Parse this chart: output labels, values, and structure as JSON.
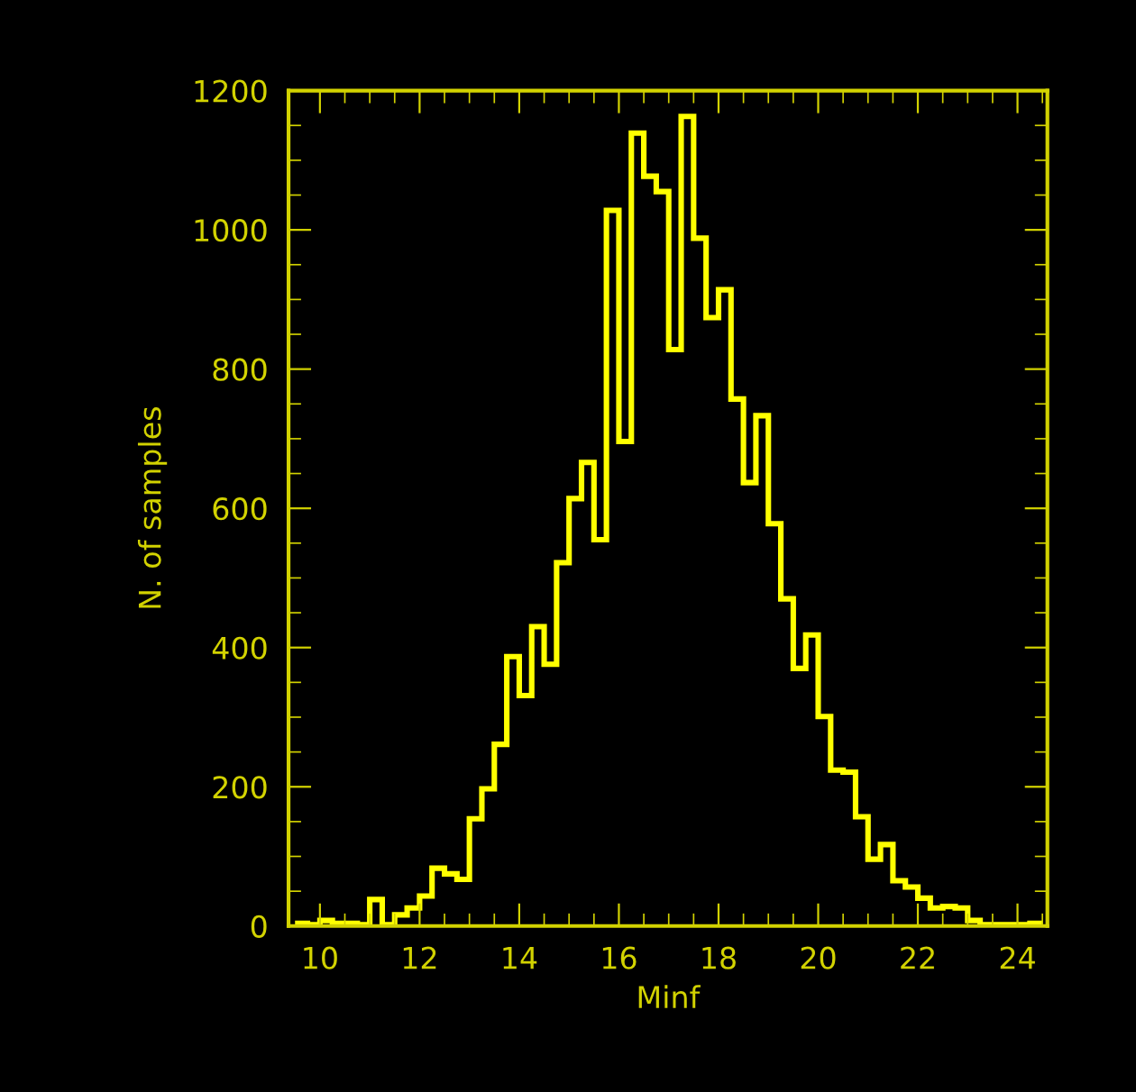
{
  "chart_data": {
    "type": "histogram",
    "xlabel": "Minf",
    "ylabel": "N. of samples",
    "bins": [
      9.5,
      9.75,
      10,
      10.25,
      10.5,
      10.75,
      11,
      11.25,
      11.5,
      11.75,
      12,
      12.25,
      12.5,
      12.75,
      13,
      13.25,
      13.5,
      13.75,
      14,
      14.25,
      14.5,
      14.75,
      15,
      15.25,
      15.5,
      15.75,
      16,
      16.25,
      16.5,
      16.75,
      17,
      17.25,
      17.5,
      17.75,
      18,
      18.25,
      18.5,
      18.75,
      19,
      19.25,
      19.5,
      19.75,
      20,
      20.25,
      20.5,
      20.75,
      21,
      21.25,
      21.5,
      21.75,
      22,
      22.25,
      22.5,
      22.75,
      23,
      23.25,
      23.5,
      23.75,
      24,
      24.25,
      24.5
    ],
    "values": [
      4,
      2,
      8,
      4,
      4,
      2,
      38,
      2,
      16,
      26,
      43,
      83,
      75,
      67,
      154,
      197,
      261,
      387,
      331,
      430,
      376,
      522,
      614,
      666,
      555,
      1028,
      696,
      1139,
      1077,
      1055,
      828,
      1163,
      988,
      874,
      914,
      757,
      637,
      733,
      578,
      470,
      370,
      418,
      301,
      224,
      221,
      157,
      96,
      117,
      65,
      56,
      40,
      26,
      28,
      26,
      8,
      2,
      2,
      2,
      2,
      4
    ],
    "color": "#ffff00",
    "xlim": [
      9.37,
      24.6
    ],
    "xticks": [
      {
        "value": 10,
        "label": "10"
      },
      {
        "value": 10.5,
        "label": null
      },
      {
        "value": 11,
        "label": null
      },
      {
        "value": 11.5,
        "label": null
      },
      {
        "value": 12,
        "label": "12"
      },
      {
        "value": 12.5,
        "label": null
      },
      {
        "value": 13,
        "label": null
      },
      {
        "value": 13.5,
        "label": null
      },
      {
        "value": 14,
        "label": "14"
      },
      {
        "value": 14.5,
        "label": null
      },
      {
        "value": 15,
        "label": null
      },
      {
        "value": 15.5,
        "label": null
      },
      {
        "value": 16,
        "label": "16"
      },
      {
        "value": 16.5,
        "label": null
      },
      {
        "value": 17,
        "label": null
      },
      {
        "value": 17.5,
        "label": null
      },
      {
        "value": 18,
        "label": "18"
      },
      {
        "value": 18.5,
        "label": null
      },
      {
        "value": 19,
        "label": null
      },
      {
        "value": 19.5,
        "label": null
      },
      {
        "value": 20,
        "label": "20"
      },
      {
        "value": 20.5,
        "label": null
      },
      {
        "value": 21,
        "label": null
      },
      {
        "value": 21.5,
        "label": null
      },
      {
        "value": 22,
        "label": "22"
      },
      {
        "value": 22.5,
        "label": null
      },
      {
        "value": 23,
        "label": null
      },
      {
        "value": 23.5,
        "label": null
      },
      {
        "value": 24,
        "label": "24"
      },
      {
        "value": 24.5,
        "label": null
      }
    ],
    "ylim": [
      0,
      1200
    ],
    "yticks": [
      0,
      {
        "value": 50,
        "label": null
      },
      {
        "value": 100,
        "label": null
      },
      {
        "value": 150,
        "label": null
      },
      200,
      {
        "value": 250,
        "label": null
      },
      {
        "value": 300,
        "label": null
      },
      {
        "value": 350,
        "label": null
      },
      400,
      {
        "value": 450,
        "label": null
      },
      {
        "value": 500,
        "label": null
      },
      {
        "value": 550,
        "label": null
      },
      600,
      {
        "value": 650,
        "label": null
      },
      {
        "value": 700,
        "label": null
      },
      {
        "value": 750,
        "label": null
      },
      800,
      {
        "value": 850,
        "label": null
      },
      {
        "value": 900,
        "label": null
      },
      {
        "value": 950,
        "label": null
      },
      1000,
      {
        "value": 1050,
        "label": null
      },
      {
        "value": 1100,
        "label": null
      },
      {
        "value": 1150,
        "label": null
      },
      1200
    ]
  }
}
